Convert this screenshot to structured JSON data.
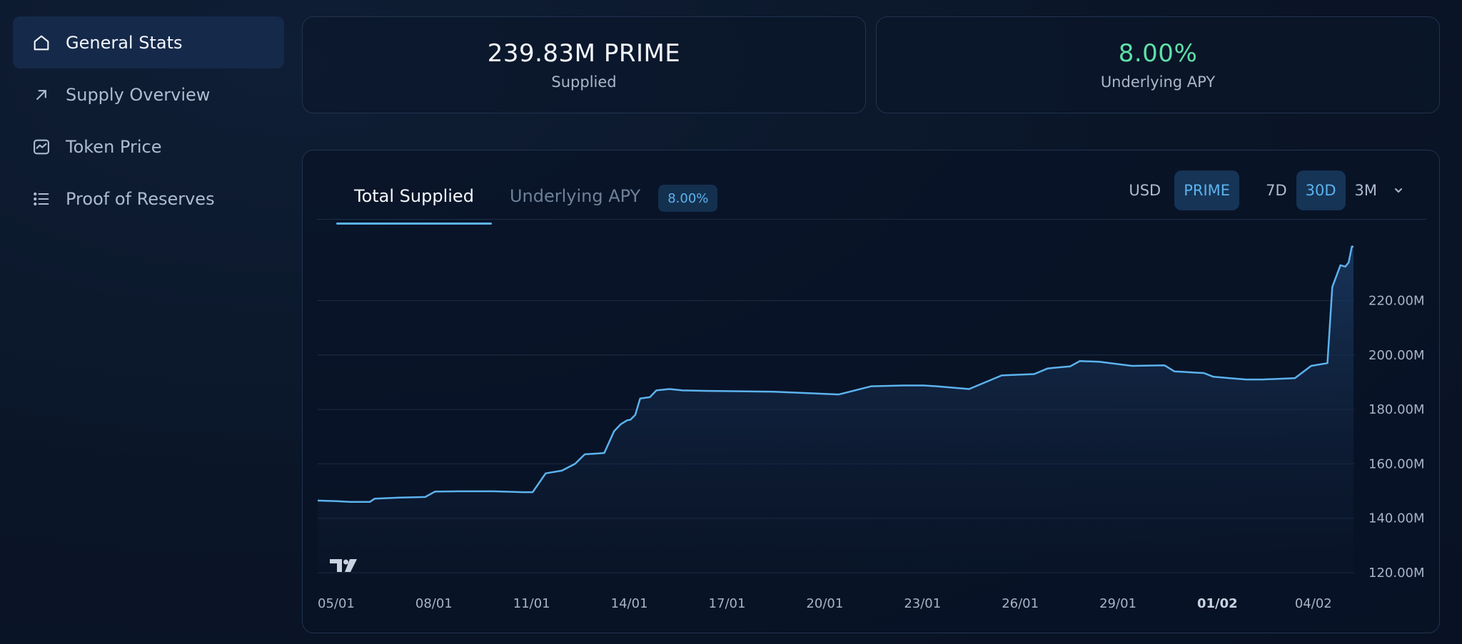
{
  "sidebar": {
    "items": [
      {
        "label": "General Stats",
        "icon": "home-icon",
        "active": true
      },
      {
        "label": "Supply Overview",
        "icon": "arrow-up-right-icon",
        "active": false
      },
      {
        "label": "Token Price",
        "icon": "chart-icon",
        "active": false
      },
      {
        "label": "Proof of Reserves",
        "icon": "list-icon",
        "active": false
      }
    ]
  },
  "stats": {
    "supplied_value": "239.83M PRIME",
    "supplied_label": "Supplied",
    "apy_value": "8.00%",
    "apy_label": "Underlying APY"
  },
  "chart_panel": {
    "tab_total": "Total Supplied",
    "tab_apy": "Underlying APY",
    "apy_badge": "8.00%",
    "currency_options": [
      "USD",
      "PRIME"
    ],
    "currency_selected": "PRIME",
    "range_options": [
      "7D",
      "30D",
      "3M"
    ],
    "range_selected": "30D"
  },
  "colors": {
    "accent": "#5cb3ee",
    "green": "#5fe0a8",
    "background": "#0a1527"
  },
  "chart_data": {
    "type": "area",
    "x_ticks": [
      "05/01",
      "08/01",
      "11/01",
      "14/01",
      "17/01",
      "20/01",
      "23/01",
      "26/01",
      "29/01",
      "01/02",
      "04/02"
    ],
    "x_ticks_bold": [
      "01/02"
    ],
    "y_ticks": [
      "120.00M",
      "140.00M",
      "160.00M",
      "180.00M",
      "200.00M",
      "220.00M"
    ],
    "ylim": [
      120,
      250
    ],
    "xlim": [
      0,
      31.8
    ],
    "series": [
      {
        "x": [
          0,
          0.6,
          1.0,
          1.6,
          1.75,
          2.5,
          3.3,
          3.6,
          4.3,
          5.4,
          6.3,
          6.6,
          7.0,
          7.5,
          7.9,
          8.2,
          8.6,
          8.8,
          9.1,
          9.3,
          9.5,
          9.6,
          9.75,
          9.9,
          10.2,
          10.4,
          10.8,
          11.2,
          12.0,
          14.0,
          16.0,
          17.0,
          18.0,
          18.6,
          19.0,
          20.0,
          21.0,
          22.0,
          22.4,
          22.6,
          23.1,
          23.4,
          24.0,
          25.0,
          26.0,
          26.3,
          27.0,
          27.2,
          27.5,
          28.0,
          28.5,
          29.0,
          30.0,
          30.5,
          31.0,
          31.15,
          31.4,
          31.55,
          31.65,
          31.75,
          31.8
        ],
        "values": [
          146.5,
          146.3,
          146.0,
          146.0,
          147.2,
          147.6,
          147.8,
          149.8,
          149.9,
          149.9,
          149.6,
          149.6,
          156.5,
          157.5,
          160.0,
          163.5,
          163.8,
          164.0,
          172.0,
          174.5,
          176.0,
          176.2,
          178.0,
          184.0,
          184.5,
          187.0,
          187.5,
          187.0,
          186.8,
          186.5,
          185.5,
          188.5,
          188.8,
          188.8,
          188.5,
          187.5,
          192.5,
          193.0,
          195.0,
          195.3,
          195.8,
          197.8,
          197.5,
          196.0,
          196.2,
          194.0,
          193.5,
          193.4,
          192.0,
          191.5,
          191.0,
          191.0,
          191.5,
          196.0,
          197.0,
          225.0,
          233.0,
          232.5,
          234.0,
          239.83,
          239.83
        ]
      }
    ]
  }
}
